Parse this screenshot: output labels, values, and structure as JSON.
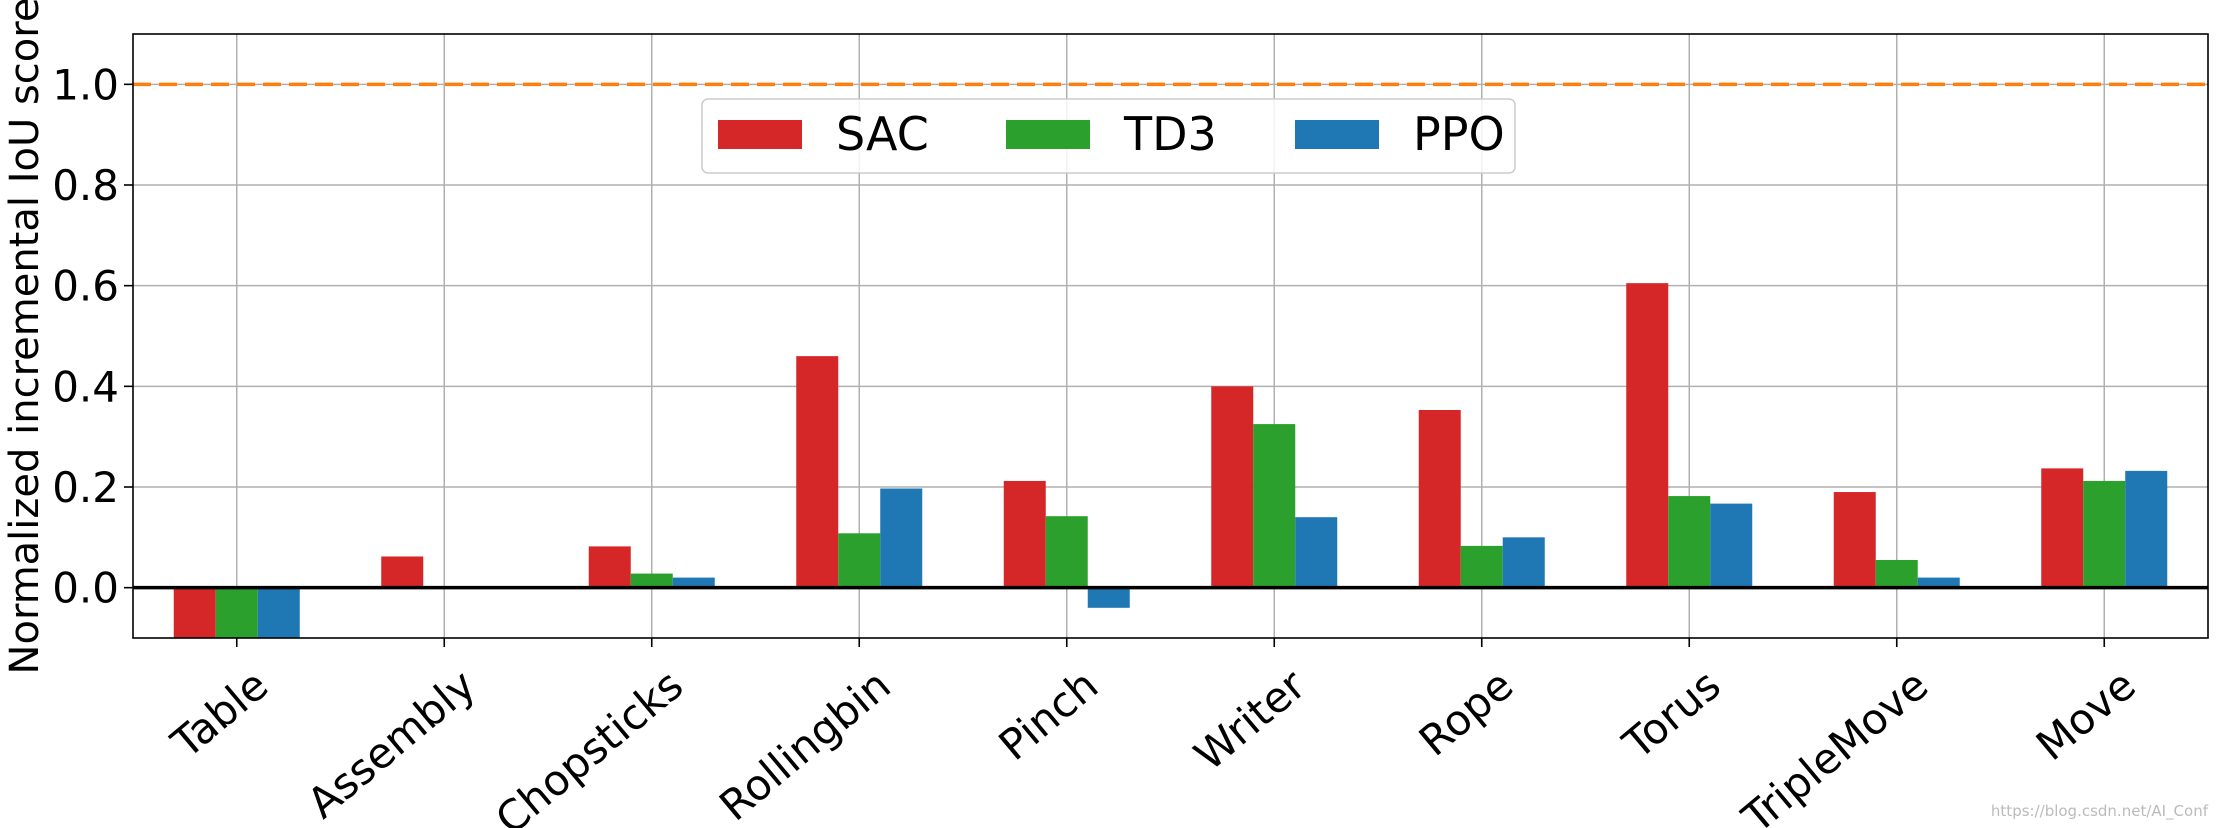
{
  "chart_data": {
    "type": "bar",
    "title": "",
    "xlabel": "",
    "ylabel": "Normalized incremental IoU score",
    "categories": [
      "Table",
      "Assembly",
      "Chopsticks",
      "Rollingbin",
      "Pinch",
      "Writer",
      "Rope",
      "Torus",
      "TripleMove",
      "Move"
    ],
    "series": [
      {
        "name": "SAC",
        "color": "#d62728",
        "values": [
          -0.1,
          0.062,
          0.082,
          0.46,
          0.212,
          0.4,
          0.353,
          0.605,
          0.19,
          0.237
        ]
      },
      {
        "name": "TD3",
        "color": "#2ca02c",
        "values": [
          -0.1,
          0.0,
          0.028,
          0.108,
          0.142,
          0.325,
          0.083,
          0.182,
          0.055,
          0.212
        ]
      },
      {
        "name": "PPO",
        "color": "#1f77b4",
        "values": [
          -0.1,
          0.002,
          0.02,
          0.197,
          -0.04,
          0.14,
          0.1,
          0.167,
          0.02,
          0.232
        ]
      }
    ],
    "ylim": [
      -0.1,
      1.1
    ],
    "yticks": [
      0.0,
      0.2,
      0.4,
      0.6,
      0.8,
      1.0
    ],
    "ytick_labels": [
      "0.0",
      "0.2",
      "0.4",
      "0.6",
      "0.8",
      "1.0"
    ],
    "reference_line": {
      "value": 1.0,
      "color": "#ff7f0e",
      "style": "dashed"
    },
    "zero_line": {
      "value": 0.0,
      "color": "#000000"
    },
    "grid": true,
    "legend": {
      "position": "upper-center",
      "columns": 3
    }
  },
  "watermark": "https://blog.csdn.net/AI_Conf"
}
